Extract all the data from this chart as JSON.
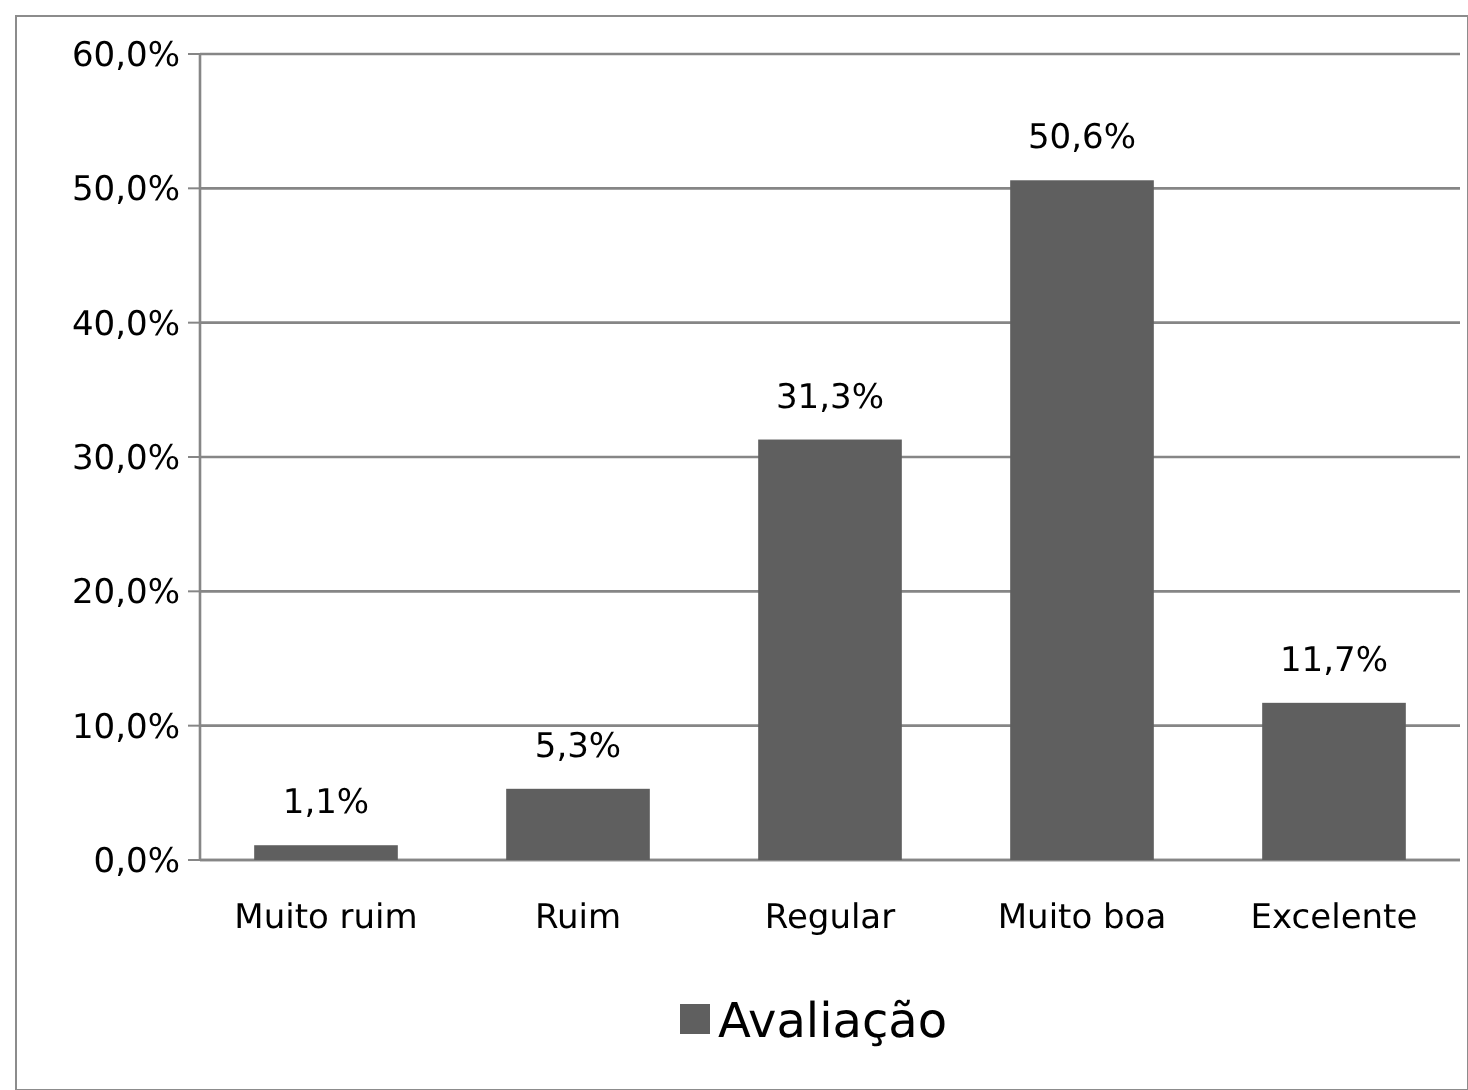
{
  "chart_data": {
    "type": "bar",
    "categories": [
      "Muito ruim",
      "Ruim",
      "Regular",
      "Muito boa",
      "Excelente"
    ],
    "series": [
      {
        "name": "Avaliação",
        "color": "#5f5f5f",
        "values": [
          1.1,
          5.3,
          31.3,
          50.6,
          11.7
        ],
        "value_labels": [
          "1,1%",
          "5,3%",
          "31,3%",
          "50,6%",
          "11,7%"
        ]
      }
    ],
    "ylim": [
      0,
      60
    ],
    "yticks": [
      {
        "value": 0,
        "label": "0,0%"
      },
      {
        "value": 10,
        "label": "10,0%"
      },
      {
        "value": 20,
        "label": "20,0%"
      },
      {
        "value": 30,
        "label": "30,0%"
      },
      {
        "value": 40,
        "label": "40,0%"
      },
      {
        "value": 50,
        "label": "50,0%"
      },
      {
        "value": 60,
        "label": "60,0%"
      }
    ],
    "grid": "y",
    "legend": "bottom"
  }
}
